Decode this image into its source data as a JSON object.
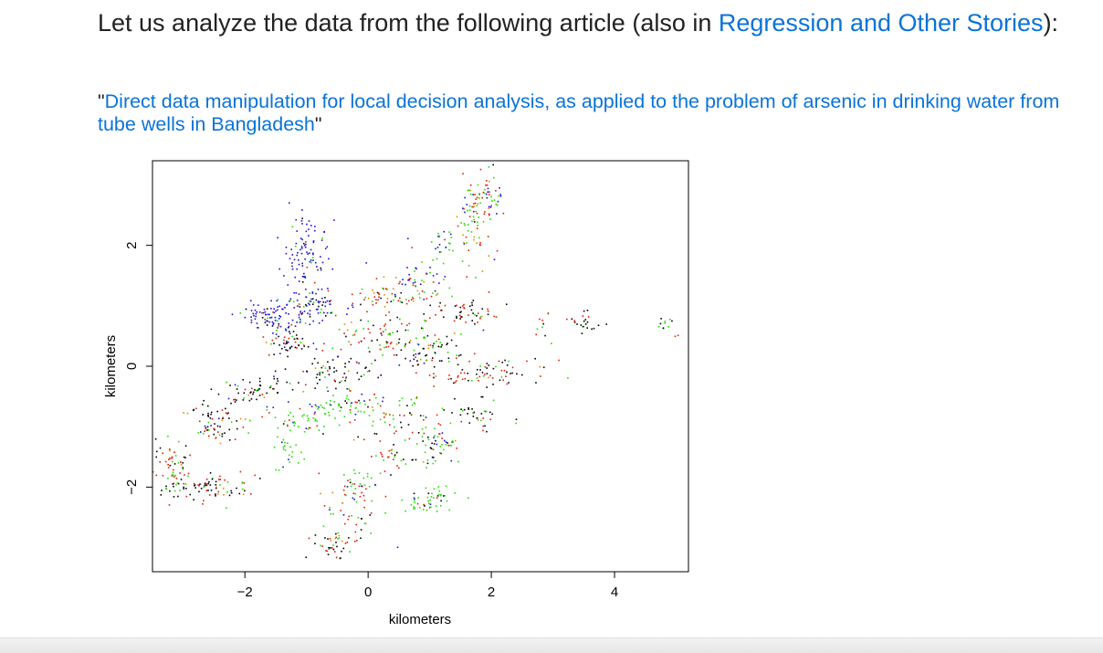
{
  "intro": {
    "text_before": "Let us analyze the data from the following article (also in ",
    "link_text": "Regression and Other Stories",
    "text_after": "):"
  },
  "article": {
    "open_quote": "\"",
    "title": "Direct data manipulation for local decision analysis, as applied to the problem of arsenic in drinking water from tube wells in Bangladesh",
    "close_quote": "\""
  },
  "colors": {
    "link": "#0a73d9",
    "black": "#000000",
    "red": "#e51c00",
    "orange": "#e88a00",
    "green": "#22dd00",
    "blue": "#1a10d8"
  },
  "chart_data": {
    "type": "scatter",
    "title": "",
    "xlabel": "kilometers",
    "ylabel": "kilometers",
    "xlim": [
      -3.5,
      5.2
    ],
    "ylim": [
      -3.4,
      3.4
    ],
    "xticks": [
      -2,
      0,
      2,
      4
    ],
    "yticks": [
      -2,
      0,
      2
    ],
    "xtick_labels": [
      "−2",
      "0",
      "2",
      "4"
    ],
    "ytick_labels": [
      "−2",
      "0",
      "2"
    ],
    "grid": false,
    "legend": "none",
    "points_per_cluster_note": "",
    "clusters": [
      {
        "x": -1.0,
        "y": 1.9,
        "sx": 0.18,
        "sy": 0.35,
        "n": 90,
        "mix": [
          0.05,
          0.05,
          0.0,
          0.05,
          0.85
        ]
      },
      {
        "x": -1.6,
        "y": 0.8,
        "sx": 0.25,
        "sy": 0.12,
        "n": 80,
        "mix": [
          0.1,
          0.05,
          0.0,
          0.05,
          0.8
        ]
      },
      {
        "x": -0.9,
        "y": 1.0,
        "sx": 0.25,
        "sy": 0.15,
        "n": 90,
        "mix": [
          0.1,
          0.05,
          0.0,
          0.1,
          0.75
        ]
      },
      {
        "x": -1.3,
        "y": 0.4,
        "sx": 0.2,
        "sy": 0.12,
        "n": 50,
        "mix": [
          0.55,
          0.2,
          0.05,
          0.1,
          0.1
        ]
      },
      {
        "x": -2.5,
        "y": -0.9,
        "sx": 0.25,
        "sy": 0.2,
        "n": 70,
        "mix": [
          0.5,
          0.25,
          0.05,
          0.15,
          0.05
        ]
      },
      {
        "x": -3.2,
        "y": -1.6,
        "sx": 0.15,
        "sy": 0.25,
        "n": 55,
        "mix": [
          0.35,
          0.3,
          0.05,
          0.3,
          0.0
        ]
      },
      {
        "x": -2.6,
        "y": -2.0,
        "sx": 0.45,
        "sy": 0.12,
        "n": 85,
        "mix": [
          0.5,
          0.35,
          0.05,
          0.1,
          0.0
        ]
      },
      {
        "x": -1.8,
        "y": -0.4,
        "sx": 0.3,
        "sy": 0.12,
        "n": 50,
        "mix": [
          0.6,
          0.15,
          0.05,
          0.15,
          0.05
        ]
      },
      {
        "x": -0.6,
        "y": -0.1,
        "sx": 0.4,
        "sy": 0.15,
        "n": 70,
        "mix": [
          0.65,
          0.1,
          0.05,
          0.15,
          0.05
        ]
      },
      {
        "x": -0.4,
        "y": -0.6,
        "sx": 0.35,
        "sy": 0.12,
        "n": 60,
        "mix": [
          0.1,
          0.1,
          0.0,
          0.45,
          0.35
        ]
      },
      {
        "x": -1.1,
        "y": -0.9,
        "sx": 0.3,
        "sy": 0.12,
        "n": 45,
        "mix": [
          0.05,
          0.1,
          0.0,
          0.75,
          0.1
        ]
      },
      {
        "x": -1.3,
        "y": -1.4,
        "sx": 0.12,
        "sy": 0.2,
        "n": 25,
        "mix": [
          0.0,
          0.05,
          0.0,
          0.85,
          0.1
        ]
      },
      {
        "x": 0.3,
        "y": 0.5,
        "sx": 0.4,
        "sy": 0.2,
        "n": 80,
        "mix": [
          0.25,
          0.3,
          0.1,
          0.35,
          0.0
        ]
      },
      {
        "x": 0.4,
        "y": 1.2,
        "sx": 0.3,
        "sy": 0.12,
        "n": 60,
        "mix": [
          0.1,
          0.5,
          0.1,
          0.3,
          0.0
        ]
      },
      {
        "x": 1.0,
        "y": 1.4,
        "sx": 0.3,
        "sy": 0.15,
        "n": 40,
        "mix": [
          0.05,
          0.15,
          0.05,
          0.35,
          0.4
        ]
      },
      {
        "x": 1.2,
        "y": 2.0,
        "sx": 0.3,
        "sy": 0.15,
        "n": 30,
        "mix": [
          0.0,
          0.1,
          0.0,
          0.5,
          0.4
        ]
      },
      {
        "x": 1.7,
        "y": 2.4,
        "sx": 0.15,
        "sy": 0.4,
        "n": 60,
        "mix": [
          0.05,
          0.45,
          0.15,
          0.35,
          0.0
        ]
      },
      {
        "x": 1.9,
        "y": 2.8,
        "sx": 0.2,
        "sy": 0.2,
        "n": 50,
        "mix": [
          0.05,
          0.3,
          0.05,
          0.35,
          0.25
        ]
      },
      {
        "x": 1.0,
        "y": 0.3,
        "sx": 0.35,
        "sy": 0.2,
        "n": 70,
        "mix": [
          0.35,
          0.2,
          0.05,
          0.35,
          0.05
        ]
      },
      {
        "x": 1.6,
        "y": 0.9,
        "sx": 0.3,
        "sy": 0.1,
        "n": 50,
        "mix": [
          0.55,
          0.35,
          0.05,
          0.05,
          0.0
        ]
      },
      {
        "x": 2.0,
        "y": -0.1,
        "sx": 0.45,
        "sy": 0.12,
        "n": 70,
        "mix": [
          0.55,
          0.3,
          0.05,
          0.1,
          0.0
        ]
      },
      {
        "x": 1.7,
        "y": -0.8,
        "sx": 0.3,
        "sy": 0.15,
        "n": 40,
        "mix": [
          0.7,
          0.2,
          0.0,
          0.1,
          0.0
        ]
      },
      {
        "x": 0.4,
        "y": -0.9,
        "sx": 0.35,
        "sy": 0.2,
        "n": 60,
        "mix": [
          0.2,
          0.25,
          0.05,
          0.45,
          0.05
        ]
      },
      {
        "x": 1.1,
        "y": -1.3,
        "sx": 0.2,
        "sy": 0.25,
        "n": 55,
        "mix": [
          0.15,
          0.25,
          0.05,
          0.4,
          0.15
        ]
      },
      {
        "x": 1.0,
        "y": -2.2,
        "sx": 0.2,
        "sy": 0.12,
        "n": 50,
        "mix": [
          0.15,
          0.1,
          0.0,
          0.65,
          0.1
        ]
      },
      {
        "x": -0.1,
        "y": -1.9,
        "sx": 0.15,
        "sy": 0.12,
        "n": 25,
        "mix": [
          0.1,
          0.2,
          0.0,
          0.65,
          0.05
        ]
      },
      {
        "x": -0.3,
        "y": -2.4,
        "sx": 0.3,
        "sy": 0.3,
        "n": 50,
        "mix": [
          0.15,
          0.35,
          0.1,
          0.3,
          0.1
        ]
      },
      {
        "x": -0.5,
        "y": -2.9,
        "sx": 0.2,
        "sy": 0.12,
        "n": 40,
        "mix": [
          0.3,
          0.45,
          0.1,
          0.15,
          0.0
        ]
      },
      {
        "x": 0.4,
        "y": -1.5,
        "sx": 0.2,
        "sy": 0.12,
        "n": 25,
        "mix": [
          0.3,
          0.45,
          0.05,
          0.2,
          0.0
        ]
      },
      {
        "x": 2.8,
        "y": 0.6,
        "sx": 0.1,
        "sy": 0.2,
        "n": 10,
        "mix": [
          0.3,
          0.3,
          0.0,
          0.4,
          0.0
        ]
      },
      {
        "x": 3.5,
        "y": 0.75,
        "sx": 0.12,
        "sy": 0.1,
        "n": 22,
        "mix": [
          0.75,
          0.2,
          0.0,
          0.05,
          0.0
        ]
      },
      {
        "x": 4.8,
        "y": 0.7,
        "sx": 0.08,
        "sy": 0.08,
        "n": 10,
        "mix": [
          0.3,
          0.1,
          0.0,
          0.6,
          0.0
        ]
      },
      {
        "x": 5.0,
        "y": 0.5,
        "sx": 0.03,
        "sy": 0.03,
        "n": 2,
        "mix": [
          0.0,
          1.0,
          0.0,
          0.0,
          0.0
        ]
      }
    ]
  }
}
